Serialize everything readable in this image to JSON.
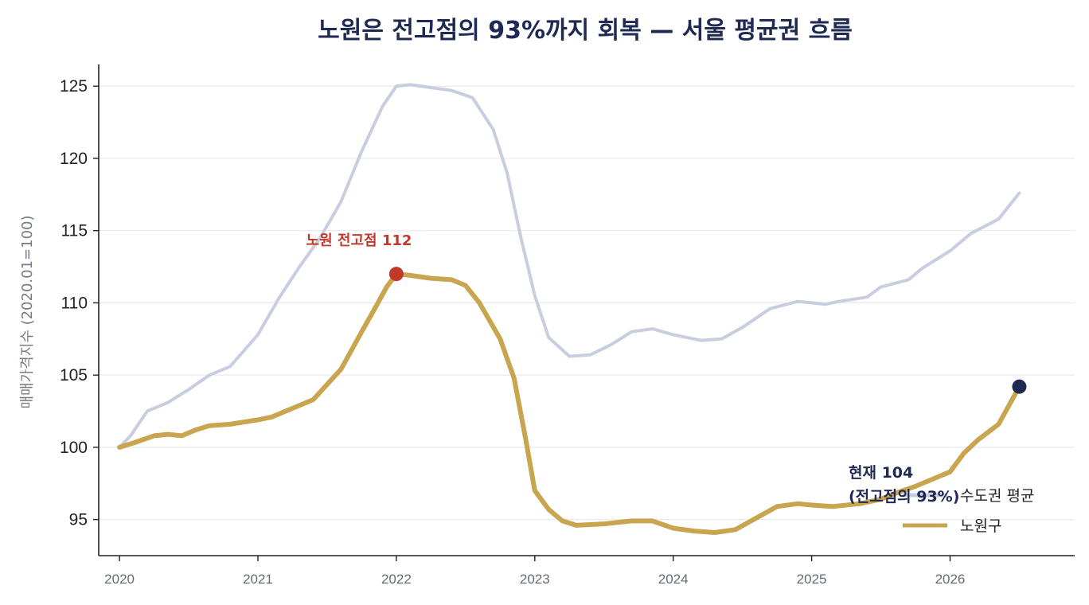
{
  "chart_data": {
    "type": "line",
    "title": "노원은 전고점의 93%까지 회복 — 서울 평균권 흐름",
    "ylabel": "매매가격지수 (2020.01=100)",
    "xlabel": "",
    "xlim": [
      2019.85,
      2026.9
    ],
    "ylim": [
      92.5,
      126.5
    ],
    "x_ticks": [
      "2020",
      "2021",
      "2022",
      "2023",
      "2024",
      "2025",
      "2026"
    ],
    "y_ticks": [
      "95",
      "100",
      "105",
      "110",
      "115",
      "120",
      "125"
    ],
    "grid": "horizontal",
    "legend_position": "bottom-right",
    "series": [
      {
        "name": "수도권 평균",
        "color": "#c9cde0",
        "points": [
          [
            2020.0,
            100.0
          ],
          [
            2020.08,
            100.8
          ],
          [
            2020.2,
            102.5
          ],
          [
            2020.35,
            103.1
          ],
          [
            2020.5,
            104.0
          ],
          [
            2020.65,
            105.0
          ],
          [
            2020.8,
            105.6
          ],
          [
            2021.0,
            107.8
          ],
          [
            2021.15,
            110.3
          ],
          [
            2021.3,
            112.5
          ],
          [
            2021.45,
            114.5
          ],
          [
            2021.6,
            117.0
          ],
          [
            2021.75,
            120.5
          ],
          [
            2021.9,
            123.6
          ],
          [
            2022.0,
            125.0
          ],
          [
            2022.1,
            125.1
          ],
          [
            2022.25,
            124.9
          ],
          [
            2022.4,
            124.7
          ],
          [
            2022.55,
            124.2
          ],
          [
            2022.7,
            122.0
          ],
          [
            2022.8,
            119.0
          ],
          [
            2022.9,
            114.5
          ],
          [
            2023.0,
            110.5
          ],
          [
            2023.1,
            107.6
          ],
          [
            2023.25,
            106.3
          ],
          [
            2023.4,
            106.4
          ],
          [
            2023.55,
            107.1
          ],
          [
            2023.7,
            108.0
          ],
          [
            2023.85,
            108.2
          ],
          [
            2024.0,
            107.8
          ],
          [
            2024.2,
            107.4
          ],
          [
            2024.35,
            107.5
          ],
          [
            2024.5,
            108.3
          ],
          [
            2024.7,
            109.6
          ],
          [
            2024.9,
            110.1
          ],
          [
            2025.1,
            109.9
          ],
          [
            2025.2,
            110.1
          ],
          [
            2025.4,
            110.4
          ],
          [
            2025.5,
            111.1
          ],
          [
            2025.7,
            111.6
          ],
          [
            2025.8,
            112.4
          ],
          [
            2026.0,
            113.6
          ],
          [
            2026.15,
            114.8
          ],
          [
            2026.35,
            115.8
          ],
          [
            2026.5,
            117.6
          ]
        ]
      },
      {
        "name": "노원구",
        "color": "#c8a54e",
        "points": [
          [
            2020.0,
            100.0
          ],
          [
            2020.1,
            100.3
          ],
          [
            2020.25,
            100.8
          ],
          [
            2020.35,
            100.9
          ],
          [
            2020.45,
            100.8
          ],
          [
            2020.55,
            101.2
          ],
          [
            2020.65,
            101.5
          ],
          [
            2020.8,
            101.6
          ],
          [
            2021.0,
            101.9
          ],
          [
            2021.1,
            102.1
          ],
          [
            2021.25,
            102.7
          ],
          [
            2021.4,
            103.3
          ],
          [
            2021.6,
            105.4
          ],
          [
            2021.75,
            108.0
          ],
          [
            2021.85,
            109.7
          ],
          [
            2021.93,
            111.1
          ],
          [
            2022.0,
            112.0
          ],
          [
            2022.1,
            111.9
          ],
          [
            2022.25,
            111.7
          ],
          [
            2022.4,
            111.6
          ],
          [
            2022.5,
            111.2
          ],
          [
            2022.6,
            110.0
          ],
          [
            2022.75,
            107.5
          ],
          [
            2022.85,
            104.8
          ],
          [
            2022.93,
            100.8
          ],
          [
            2023.0,
            97.0
          ],
          [
            2023.1,
            95.7
          ],
          [
            2023.2,
            94.9
          ],
          [
            2023.3,
            94.6
          ],
          [
            2023.5,
            94.7
          ],
          [
            2023.7,
            94.9
          ],
          [
            2023.85,
            94.9
          ],
          [
            2024.0,
            94.4
          ],
          [
            2024.15,
            94.2
          ],
          [
            2024.3,
            94.1
          ],
          [
            2024.45,
            94.3
          ],
          [
            2024.6,
            95.1
          ],
          [
            2024.75,
            95.9
          ],
          [
            2024.9,
            96.1
          ],
          [
            2025.0,
            96.0
          ],
          [
            2025.15,
            95.9
          ],
          [
            2025.35,
            96.1
          ],
          [
            2025.5,
            96.4
          ],
          [
            2025.6,
            96.8
          ],
          [
            2025.75,
            97.3
          ],
          [
            2025.85,
            97.7
          ],
          [
            2026.0,
            98.3
          ],
          [
            2026.1,
            99.6
          ],
          [
            2026.2,
            100.5
          ],
          [
            2026.35,
            101.6
          ],
          [
            2026.42,
            102.8
          ],
          [
            2026.5,
            104.2
          ]
        ]
      }
    ],
    "markers": [
      {
        "x": 2022.0,
        "y": 112.0,
        "color": "#c0392b"
      },
      {
        "x": 2026.5,
        "y": 104.2,
        "color": "#1f2a52"
      }
    ],
    "annotations": {
      "peak": "노원 전고점 112",
      "current_line1": "현재 104",
      "current_line2": "(전고점의 93%)"
    }
  }
}
